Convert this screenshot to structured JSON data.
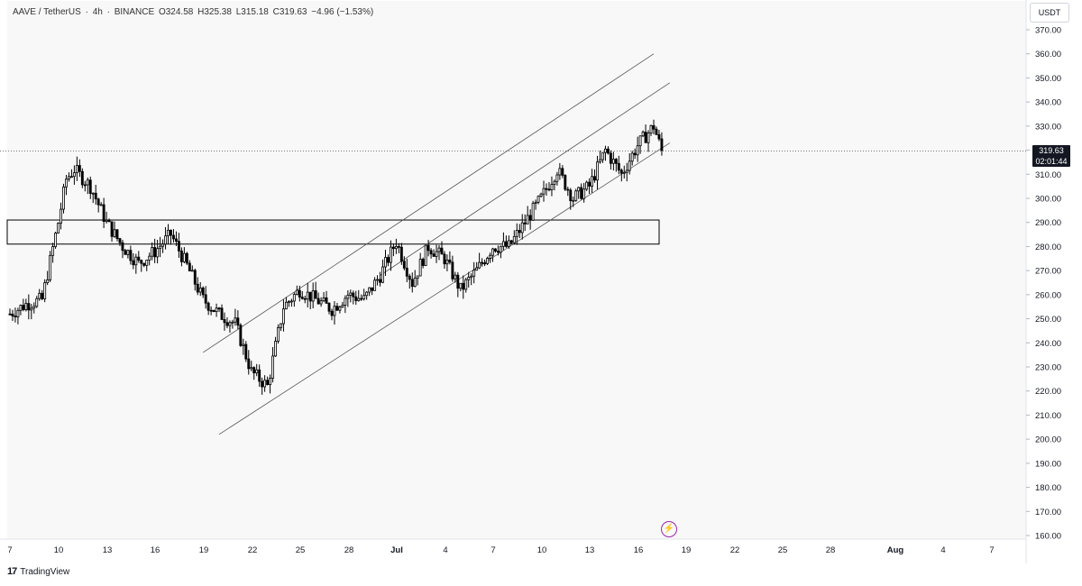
{
  "header": {
    "symbol": "AAVE / TetherUS",
    "interval": "4h",
    "exchange": "BINANCE",
    "open": "O324.58",
    "high": "H325.38",
    "low": "L315.18",
    "close": "C319.63",
    "change": "−4.96 (−1.53%)"
  },
  "currency": "USDT",
  "price_tag": {
    "price": "319.63",
    "countdown": "02:01:44"
  },
  "footer": {
    "brand": "TradingView"
  },
  "colors": {
    "candle": "#000000",
    "background": "#f8f8f8",
    "line": "#555555"
  },
  "chart_data": {
    "type": "candlestick",
    "symbol": "AAVE/USDT",
    "timeframe": "4h",
    "y_axis": {
      "min": 160,
      "max": 370,
      "ticks": [
        160,
        170,
        180,
        190,
        200,
        210,
        220,
        230,
        240,
        250,
        260,
        270,
        280,
        290,
        300,
        310,
        320,
        330,
        340,
        350,
        360,
        370
      ]
    },
    "x_axis": {
      "ticks": [
        "7",
        "10",
        "13",
        "16",
        "19",
        "22",
        "25",
        "28",
        "Jul",
        "4",
        "7",
        "10",
        "13",
        "16",
        "19",
        "22",
        "25",
        "28",
        "Aug",
        "4",
        "7"
      ]
    },
    "close_series": [
      [
        "Jun 7",
        252
      ],
      [
        "Jun 8",
        256
      ],
      [
        "Jun 9",
        258
      ],
      [
        "Jun 10",
        290
      ],
      [
        "Jun 10.5",
        308
      ],
      [
        "Jun 11",
        312
      ],
      [
        "Jun 12",
        305
      ],
      [
        "Jun 13",
        290
      ],
      [
        "Jun 14",
        280
      ],
      [
        "Jun 15",
        273
      ],
      [
        "Jun 16",
        278
      ],
      [
        "Jun 17",
        285
      ],
      [
        "Jun 18",
        272
      ],
      [
        "Jun 19",
        258
      ],
      [
        "Jun 20",
        252
      ],
      [
        "Jun 21",
        248
      ],
      [
        "Jun 22",
        228
      ],
      [
        "Jun 23",
        222
      ],
      [
        "Jun 24",
        255
      ],
      [
        "Jun 25",
        262
      ],
      [
        "Jun 26",
        258
      ],
      [
        "Jun 27",
        254
      ],
      [
        "Jun 28",
        260
      ],
      [
        "Jun 29",
        258
      ],
      [
        "Jun 30",
        268
      ],
      [
        "Jul 1",
        282
      ],
      [
        "Jul 2",
        265
      ],
      [
        "Jul 3",
        280
      ],
      [
        "Jul 4",
        275
      ],
      [
        "Jul 5",
        262
      ],
      [
        "Jul 6",
        270
      ],
      [
        "Jul 7",
        280
      ],
      [
        "Jul 8",
        280
      ],
      [
        "Jul 9",
        290
      ],
      [
        "Jul 10",
        300
      ],
      [
        "Jul 11",
        312
      ],
      [
        "Jul 12",
        300
      ],
      [
        "Jul 13",
        305
      ],
      [
        "Jul 14",
        320
      ],
      [
        "Jul 15",
        310
      ],
      [
        "Jul 16",
        322
      ],
      [
        "Jul 17",
        330
      ],
      [
        "Jul 17.5",
        319.63
      ]
    ],
    "current_price": 319.63,
    "annotations": [
      {
        "type": "rectangle",
        "price_top": 291,
        "price_bottom": 281,
        "x_start": "Jun 7",
        "x_end": "Jul 17"
      },
      {
        "type": "channel_line",
        "from": [
          "Jun 19",
          236
        ],
        "to": [
          "Jul 17",
          360
        ]
      },
      {
        "type": "channel_line",
        "from": [
          "Jun 30",
          268
        ],
        "to": [
          "Jul 18",
          348
        ]
      },
      {
        "type": "channel_line",
        "from": [
          "Jun 20",
          202
        ],
        "to": [
          "Jul 18",
          323
        ]
      }
    ],
    "grid": false,
    "legend": "none"
  }
}
